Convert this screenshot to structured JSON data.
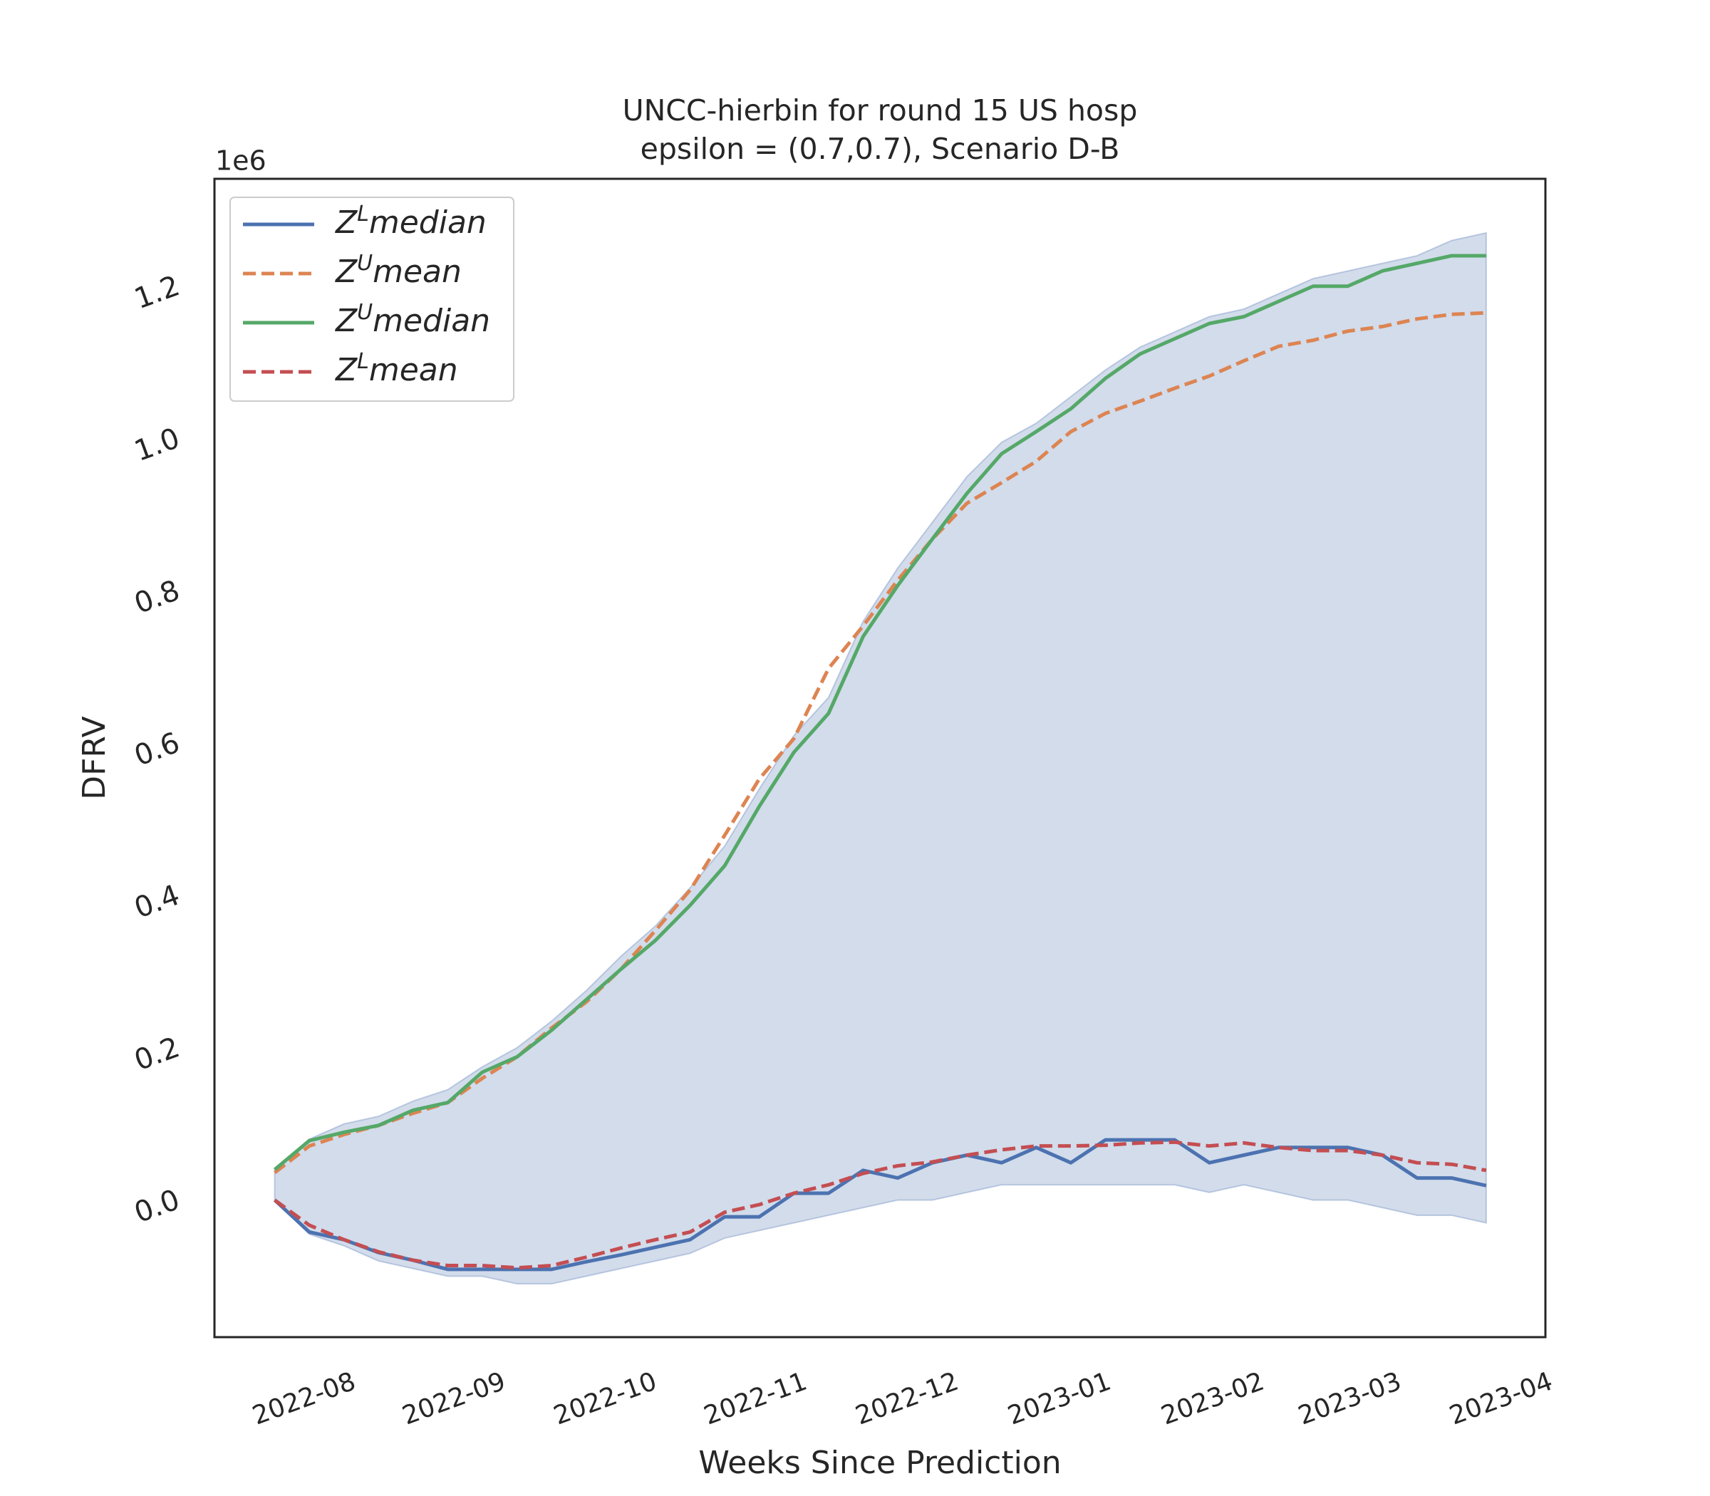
{
  "chart_data": {
    "type": "line",
    "title": "UNCC-hierbin for round 15 US  hosp",
    "subtitle": "epsilon = (0.7,0.7), Scenario D-B",
    "x_label": "Weeks Since Prediction",
    "y_label": "DFRV",
    "y_offset_label": "1e6",
    "x": [
      0,
      1,
      2,
      3,
      4,
      5,
      6,
      7,
      8,
      9,
      10,
      11,
      12,
      13,
      14,
      15,
      16,
      17,
      18,
      19,
      20,
      21,
      22,
      23,
      24,
      25,
      26,
      27,
      28,
      29,
      30,
      31,
      32,
      33,
      34,
      35
    ],
    "xlim": [
      -1.74,
      36.71
    ],
    "xticks": [
      {
        "value": 0.86,
        "label": "2022-08"
      },
      {
        "value": 5.19,
        "label": "2022-09"
      },
      {
        "value": 9.56,
        "label": "2022-10"
      },
      {
        "value": 13.9,
        "label": "2022-11"
      },
      {
        "value": 18.28,
        "label": "2022-12"
      },
      {
        "value": 22.68,
        "label": "2023-01"
      },
      {
        "value": 27.11,
        "label": "2023-02"
      },
      {
        "value": 31.07,
        "label": "2023-03"
      },
      {
        "value": 35.44,
        "label": "2023-04"
      }
    ],
    "ylim": [
      -0.18,
      1.341
    ],
    "yticks": [
      {
        "value": 0,
        "label": "0.0"
      },
      0.2,
      0.4,
      0.6,
      0.8,
      {
        "value": 1,
        "label": "1.0"
      },
      1.2
    ],
    "legend": "upper left",
    "band": {
      "color": "#4c72b0",
      "lower": [
        0,
        -0.045,
        -0.06,
        -0.08,
        -0.09,
        -0.1,
        -0.1,
        -0.11,
        -0.11,
        -0.1,
        -0.09,
        -0.08,
        -0.07,
        -0.05,
        -0.04,
        -0.03,
        -0.02,
        -0.01,
        0,
        0,
        0.01,
        0.02,
        0.02,
        0.02,
        0.02,
        0.02,
        0.02,
        0.01,
        0.02,
        0.01,
        0,
        0,
        -0.01,
        -0.02,
        -0.02,
        -0.03
      ],
      "upper": [
        0.04,
        0.08,
        0.1,
        0.11,
        0.13,
        0.145,
        0.175,
        0.2,
        0.235,
        0.275,
        0.32,
        0.36,
        0.41,
        0.465,
        0.54,
        0.61,
        0.66,
        0.76,
        0.83,
        0.89,
        0.95,
        0.995,
        1.02,
        1.055,
        1.09,
        1.12,
        1.14,
        1.16,
        1.17,
        1.19,
        1.21,
        1.22,
        1.23,
        1.24,
        1.26,
        1.27
      ]
    },
    "series": [
      {
        "name": "ZLmedian",
        "color": "#4c72b0",
        "dashed": false,
        "values": [
          0,
          -0.042,
          -0.052,
          -0.069,
          -0.079,
          -0.091,
          -0.091,
          -0.091,
          -0.091,
          -0.081,
          -0.072,
          -0.062,
          -0.052,
          -0.022,
          -0.022,
          0.009,
          0.009,
          0.039,
          0.029,
          0.049,
          0.059,
          0.049,
          0.069,
          0.049,
          0.079,
          0.079,
          0.079,
          0.049,
          0.059,
          0.069,
          0.069,
          0.069,
          0.059,
          0.029,
          0.029,
          0.019
        ]
      },
      {
        "name": "ZUmean",
        "color": "#dd8452",
        "dashed": true,
        "values": [
          0.036,
          0.071,
          0.086,
          0.098,
          0.114,
          0.128,
          0.16,
          0.188,
          0.226,
          0.26,
          0.303,
          0.354,
          0.407,
          0.479,
          0.553,
          0.606,
          0.698,
          0.754,
          0.814,
          0.868,
          0.915,
          0.942,
          0.97,
          1.009,
          1.033,
          1.049,
          1.066,
          1.082,
          1.102,
          1.121,
          1.129,
          1.141,
          1.147,
          1.157,
          1.163,
          1.165
        ]
      },
      {
        "name": "ZUmedian",
        "color": "#55a868",
        "dashed": false,
        "values": [
          0.04,
          0.078,
          0.089,
          0.098,
          0.118,
          0.128,
          0.168,
          0.188,
          0.223,
          0.263,
          0.303,
          0.341,
          0.387,
          0.439,
          0.517,
          0.588,
          0.639,
          0.74,
          0.807,
          0.868,
          0.928,
          0.98,
          1.009,
          1.039,
          1.079,
          1.111,
          1.131,
          1.151,
          1.16,
          1.18,
          1.2,
          1.2,
          1.22,
          1.23,
          1.24,
          1.24
        ]
      },
      {
        "name": "ZLmean",
        "color": "#c44e52",
        "dashed": true,
        "values": [
          0,
          -0.033,
          -0.052,
          -0.068,
          -0.079,
          -0.086,
          -0.086,
          -0.089,
          -0.086,
          -0.075,
          -0.063,
          -0.052,
          -0.042,
          -0.016,
          -0.006,
          0.009,
          0.02,
          0.035,
          0.045,
          0.05,
          0.059,
          0.066,
          0.071,
          0.071,
          0.072,
          0.075,
          0.076,
          0.071,
          0.075,
          0.069,
          0.065,
          0.065,
          0.059,
          0.049,
          0.047,
          0.039
        ]
      }
    ]
  }
}
